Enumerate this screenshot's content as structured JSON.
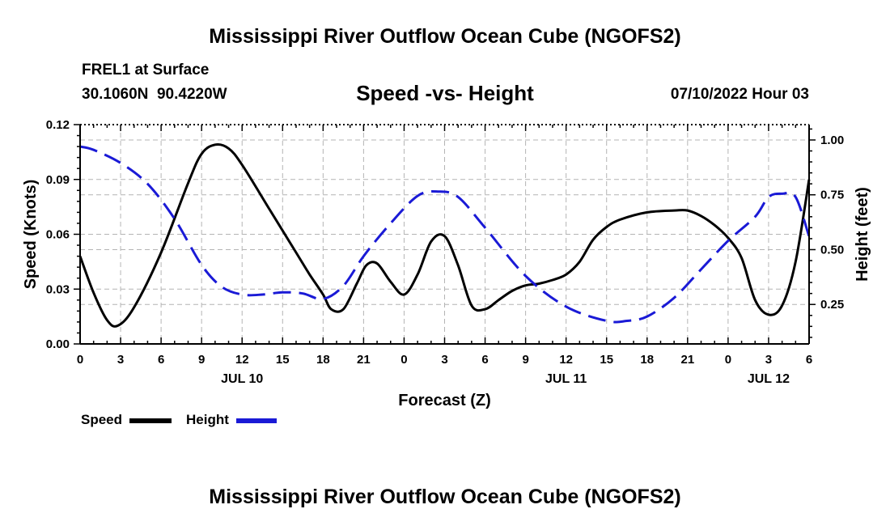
{
  "header": {
    "title": "Mississippi River Outflow Ocean Cube (NGOFS2)",
    "station": "FREL1 at Surface",
    "coords": "30.1060N  90.4220W",
    "subtitle": "Speed -vs- Height",
    "datetime": "07/10/2022 Hour 03"
  },
  "footer": {
    "title": "Mississippi River Outflow Ocean Cube (NGOFS2)"
  },
  "legend": {
    "speed_label": "Speed",
    "height_label": "Height"
  },
  "colors": {
    "speed": "#000000",
    "height": "#1a1ad6",
    "grid": "#b4b4b4"
  },
  "chart_data": {
    "type": "line",
    "title": "Speed -vs- Height",
    "xlabel": "Forecast (Z)",
    "ylabel": "Speed (Knots)",
    "y2label": "Height (feet)",
    "xlim": [
      0,
      54
    ],
    "ylim": [
      0,
      0.12
    ],
    "y2lim": [
      0.07,
      1.07
    ],
    "x_ticks": [
      0,
      3,
      6,
      9,
      12,
      15,
      18,
      21,
      24,
      27,
      30,
      33,
      36,
      39,
      42,
      45,
      48,
      51,
      54
    ],
    "x_tick_labels": [
      "0",
      "3",
      "6",
      "9",
      "12",
      "15",
      "18",
      "21",
      "0",
      "3",
      "6",
      "9",
      "12",
      "15",
      "18",
      "21",
      "0",
      "3",
      "6"
    ],
    "date_labels": [
      {
        "x": 12,
        "label": "JUL 10"
      },
      {
        "x": 36,
        "label": "JUL 11"
      },
      {
        "x": 51,
        "label": "JUL 12"
      }
    ],
    "y_ticks": [
      0,
      0.03,
      0.06,
      0.09,
      0.12
    ],
    "y_tick_labels": [
      "0.00",
      "0.03",
      "0.06",
      "0.09",
      "0.12"
    ],
    "y2_ticks": [
      0.25,
      0.5,
      0.75,
      1.0
    ],
    "y2_tick_labels": [
      "0.25",
      "0.50",
      "0.75",
      "1.00"
    ],
    "series": [
      {
        "name": "Speed",
        "axis": "left",
        "x": [
          0,
          1,
          2,
          2.8,
          4,
          6,
          8,
          9,
          10,
          11,
          12,
          14,
          16,
          17,
          18,
          18.6,
          19.5,
          20.5,
          21.2,
          22,
          23,
          24,
          25,
          26,
          27,
          28,
          29,
          30,
          31,
          32,
          33,
          34,
          35,
          36,
          37,
          38,
          39,
          40,
          42,
          44,
          45,
          46,
          47,
          48,
          49,
          50,
          51,
          52,
          53,
          54
        ],
        "values": [
          0.048,
          0.028,
          0.013,
          0.01,
          0.02,
          0.05,
          0.088,
          0.104,
          0.109,
          0.107,
          0.098,
          0.074,
          0.05,
          0.038,
          0.027,
          0.019,
          0.019,
          0.033,
          0.043,
          0.044,
          0.034,
          0.027,
          0.038,
          0.056,
          0.059,
          0.043,
          0.021,
          0.019,
          0.024,
          0.029,
          0.032,
          0.033,
          0.035,
          0.038,
          0.045,
          0.057,
          0.064,
          0.068,
          0.072,
          0.073,
          0.073,
          0.07,
          0.065,
          0.058,
          0.047,
          0.024,
          0.016,
          0.021,
          0.045,
          0.09
        ]
      },
      {
        "name": "Height",
        "axis": "right",
        "x": [
          0,
          1,
          3,
          5,
          7,
          9,
          10.5,
          12,
          13.5,
          15,
          16.5,
          18,
          19.5,
          21,
          23,
          25,
          26.5,
          28,
          30,
          33,
          36,
          39,
          40.5,
          42,
          44,
          46,
          48,
          50,
          51,
          52,
          53,
          54
        ],
        "values": [
          0.97,
          0.955,
          0.895,
          0.8,
          0.64,
          0.43,
          0.33,
          0.295,
          0.295,
          0.305,
          0.3,
          0.275,
          0.335,
          0.47,
          0.62,
          0.745,
          0.765,
          0.74,
          0.6,
          0.38,
          0.24,
          0.175,
          0.175,
          0.195,
          0.28,
          0.41,
          0.54,
          0.65,
          0.74,
          0.755,
          0.74,
          0.56
        ]
      }
    ],
    "legend_position": "bottom-left"
  }
}
